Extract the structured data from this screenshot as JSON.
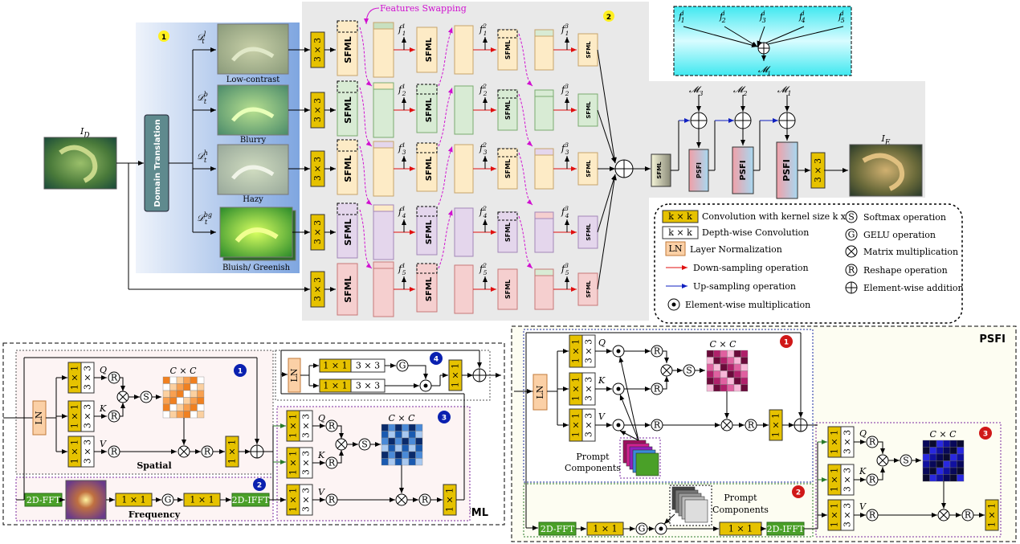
{
  "top": {
    "input_label": "I_D",
    "output_label": "I_E",
    "domain_translation": "Domain Translation",
    "features_swapping": "Features Swapping",
    "badge_1": "1",
    "badge_2": "2",
    "domains": [
      {
        "symbol": "D_t^l",
        "caption": "Low-contrast"
      },
      {
        "symbol": "D_t^b",
        "caption": "Blurry"
      },
      {
        "symbol": "D_t^h",
        "caption": "Hazy"
      },
      {
        "symbol": "D_t^bg",
        "caption": "Bluish/ Greenish"
      }
    ],
    "conv3": "3 × 3",
    "sfml": "SFML",
    "psfi": "PSFI",
    "features": {
      "row1": [
        "f_1^1",
        "f_1^2",
        "f_1^3"
      ],
      "row2": [
        "f_2^1",
        "f_2^2",
        "f_2^3"
      ],
      "row3": [
        "f_3^1",
        "f_3^2",
        "f_3^3"
      ],
      "row4": [
        "f_4^1",
        "f_4^2",
        "f_4^3"
      ],
      "row5": [
        "f_5^1",
        "f_5^2",
        "f_5^3"
      ]
    },
    "fusion_inputs": [
      "f_1^i",
      "f_2^i",
      "f_3^i",
      "f_4^i",
      "f_5^i"
    ],
    "fusion_output": "M_i",
    "m_labels": [
      "M_3",
      "M_2",
      "M_1"
    ]
  },
  "legend": {
    "items_left": [
      {
        "symbol": "k × k",
        "text": "Convolution with kernel size k x k"
      },
      {
        "symbol": "k × k",
        "text": "Depth-wise Convolution"
      },
      {
        "symbol": "LN",
        "text": "Layer Normalization"
      },
      {
        "symbol": "red-arrow",
        "text": "Down-sampling operation"
      },
      {
        "symbol": "blue-arrow",
        "text": "Up-sampling operation"
      },
      {
        "symbol": "dot",
        "text": "Element-wise multiplication"
      }
    ],
    "items_right": [
      {
        "symbol": "S",
        "text": "Softmax operation"
      },
      {
        "symbol": "G",
        "text": "GELU operation"
      },
      {
        "symbol": "times",
        "text": "Matrix multiplication"
      },
      {
        "symbol": "R",
        "text": "Reshape operation"
      },
      {
        "symbol": "plus",
        "text": "Element-wise addition"
      }
    ]
  },
  "sfml_detail": {
    "title": "SFML",
    "spatial": "Spatial",
    "frequency": "Frequency",
    "fft": "2D-FFT",
    "ifft": "2D-IFFT",
    "conv1": "1 × 1",
    "conv3": "3 × 3",
    "ln": "LN",
    "q": "Q",
    "k": "K",
    "v": "V",
    "cxc": "C × C",
    "s": "S",
    "r": "R",
    "g": "G",
    "badges": [
      "1",
      "2",
      "3",
      "4"
    ]
  },
  "psfi_detail": {
    "title": "PSFI",
    "prompt_components": "Prompt Components",
    "prompt_components_2": "Prompt Components",
    "fft": "2D-FFT",
    "ifft": "2D-IFFT",
    "badges": [
      "1",
      "2",
      "3"
    ]
  }
}
